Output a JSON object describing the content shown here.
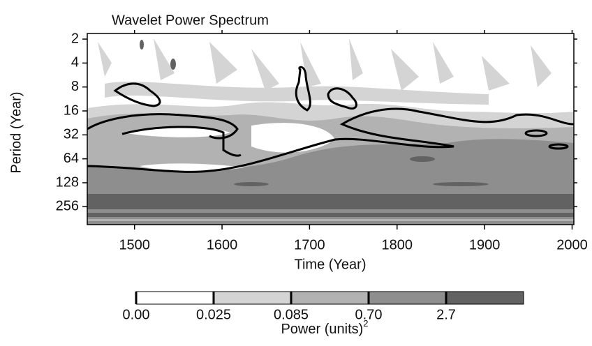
{
  "chart_data": {
    "type": "contour",
    "title": "Wavelet Power Spectrum",
    "x_label": "Time (Year)",
    "y_label": "Period (Year)",
    "xlim": [
      1446,
      2002
    ],
    "xticks": [
      1500,
      1600,
      1700,
      1800,
      1900,
      2000
    ],
    "ylim": [
      1.7,
      430
    ],
    "yticks": [
      2,
      4,
      8,
      16,
      32,
      64,
      128,
      256
    ],
    "y_scale": "log2",
    "y_reversed": true,
    "colorbar": {
      "label": "Power (units)",
      "label_exponent": "2",
      "levels": [
        {
          "value": 0,
          "label": "0.00"
        },
        0.025,
        0.085,
        {
          "value": 0.7,
          "label": "0.70"
        },
        2.7
      ],
      "colors": [
        "#ffffff",
        "#d4d4d4",
        "#b2b2b2",
        "#8e8e8e",
        "#626262"
      ]
    }
  }
}
